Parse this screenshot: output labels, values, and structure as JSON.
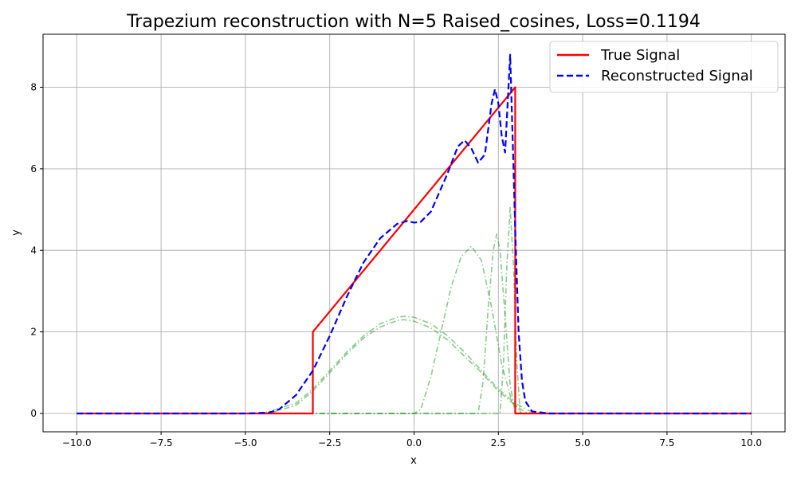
{
  "chart_data": {
    "type": "line",
    "title": "Trapezium reconstruction with N=5 Raised_cosines, Loss=0.1194",
    "xlabel": "x",
    "ylabel": "y",
    "xlim": [
      -11.0,
      11.0
    ],
    "ylim": [
      -0.45,
      9.3
    ],
    "xticks": [
      -10.0,
      -7.5,
      -5.0,
      -2.5,
      0.0,
      2.5,
      5.0,
      7.5,
      10.0
    ],
    "xtick_labels": [
      "−10.0",
      "−7.5",
      "−5.0",
      "−2.5",
      "0.0",
      "2.5",
      "5.0",
      "7.5",
      "10.0"
    ],
    "yticks": [
      0,
      2,
      4,
      6,
      8
    ],
    "ytick_labels": [
      "0",
      "2",
      "4",
      "6",
      "8"
    ],
    "grid": true,
    "legend_position": "top-right",
    "series": [
      {
        "name": "True Signal",
        "color": "#ff0000",
        "style": "solid",
        "points": [
          [
            -10,
            0
          ],
          [
            -3,
            0
          ],
          [
            -3,
            2
          ],
          [
            3,
            8
          ],
          [
            3,
            0
          ],
          [
            10,
            0
          ]
        ]
      },
      {
        "name": "Reconstructed Signal",
        "color": "#0000ff",
        "style": "dashed",
        "points": [
          [
            -10,
            0
          ],
          [
            -5,
            0
          ],
          [
            -4.3,
            0.02
          ],
          [
            -4,
            0.1
          ],
          [
            -3.5,
            0.45
          ],
          [
            -3,
            1.05
          ],
          [
            -2.5,
            1.9
          ],
          [
            -2,
            2.85
          ],
          [
            -1.5,
            3.7
          ],
          [
            -1,
            4.3
          ],
          [
            -0.5,
            4.65
          ],
          [
            -0.2,
            4.72
          ],
          [
            0,
            4.68
          ],
          [
            0.2,
            4.7
          ],
          [
            0.5,
            4.95
          ],
          [
            1,
            5.9
          ],
          [
            1.3,
            6.55
          ],
          [
            1.5,
            6.7
          ],
          [
            1.7,
            6.5
          ],
          [
            1.9,
            6.15
          ],
          [
            2.1,
            6.35
          ],
          [
            2.3,
            7.6
          ],
          [
            2.4,
            7.95
          ],
          [
            2.5,
            7.6
          ],
          [
            2.6,
            6.8
          ],
          [
            2.7,
            6.4
          ],
          [
            2.85,
            8.8
          ],
          [
            2.95,
            6.0
          ],
          [
            3.0,
            4.5
          ],
          [
            3.1,
            2.0
          ],
          [
            3.2,
            0.8
          ],
          [
            3.3,
            0.3
          ],
          [
            3.5,
            0.05
          ],
          [
            4,
            0
          ],
          [
            10,
            0
          ]
        ]
      },
      {
        "color": "#2ca02c",
        "style": "dashdot",
        "points": [
          [
            -10,
            0
          ],
          [
            -4.5,
            0
          ],
          [
            -3.5,
            0.25
          ],
          [
            -3,
            0.6
          ],
          [
            -2.5,
            1.05
          ],
          [
            -2,
            1.5
          ],
          [
            -1.5,
            1.9
          ],
          [
            -1,
            2.2
          ],
          [
            -0.5,
            2.36
          ],
          [
            -0.3,
            2.38
          ],
          [
            0,
            2.36
          ],
          [
            0.5,
            2.2
          ],
          [
            1,
            1.9
          ],
          [
            1.5,
            1.5
          ],
          [
            2,
            1.05
          ],
          [
            2.5,
            0.6
          ],
          [
            3,
            0.25
          ],
          [
            3.5,
            0.03
          ],
          [
            4,
            0
          ],
          [
            10,
            0
          ]
        ]
      },
      {
        "color": "#2ca02c",
        "style": "dashdot",
        "points": [
          [
            -10,
            0
          ],
          [
            -4.3,
            0
          ],
          [
            -3.5,
            0.2
          ],
          [
            -3,
            0.55
          ],
          [
            -2.5,
            1.0
          ],
          [
            -2,
            1.45
          ],
          [
            -1.5,
            1.85
          ],
          [
            -1,
            2.12
          ],
          [
            -0.5,
            2.28
          ],
          [
            -0.3,
            2.3
          ],
          [
            0,
            2.26
          ],
          [
            0.5,
            2.1
          ],
          [
            1,
            1.8
          ],
          [
            1.5,
            1.4
          ],
          [
            2,
            1.0
          ],
          [
            2.5,
            0.55
          ],
          [
            3,
            0.2
          ],
          [
            3.3,
            0.03
          ],
          [
            3.6,
            0
          ],
          [
            10,
            0
          ]
        ]
      },
      {
        "color": "#2ca02c",
        "style": "dashdot",
        "points": [
          [
            -10,
            0
          ],
          [
            0,
            0
          ],
          [
            0.2,
            0.1
          ],
          [
            0.5,
            0.9
          ],
          [
            0.8,
            2.0
          ],
          [
            1.1,
            3.1
          ],
          [
            1.4,
            3.85
          ],
          [
            1.7,
            4.1
          ],
          [
            2.0,
            3.75
          ],
          [
            2.3,
            2.6
          ],
          [
            2.6,
            1.2
          ],
          [
            2.9,
            0.3
          ],
          [
            3.2,
            0
          ],
          [
            10,
            0
          ]
        ]
      },
      {
        "color": "#2ca02c",
        "style": "dashdot",
        "points": [
          [
            -10,
            0
          ],
          [
            1.9,
            0
          ],
          [
            2.05,
            0.8
          ],
          [
            2.2,
            2.6
          ],
          [
            2.35,
            4.0
          ],
          [
            2.45,
            4.4
          ],
          [
            2.55,
            4.0
          ],
          [
            2.7,
            2.4
          ],
          [
            2.85,
            0.7
          ],
          [
            3.0,
            0
          ],
          [
            10,
            0
          ]
        ]
      },
      {
        "color": "#2ca02c",
        "style": "dashdot",
        "points": [
          [
            -10,
            0
          ],
          [
            2.55,
            0
          ],
          [
            2.65,
            1.2
          ],
          [
            2.75,
            3.6
          ],
          [
            2.85,
            5.05
          ],
          [
            2.95,
            3.6
          ],
          [
            3.05,
            1.2
          ],
          [
            3.15,
            0
          ],
          [
            10,
            0
          ]
        ]
      }
    ]
  }
}
